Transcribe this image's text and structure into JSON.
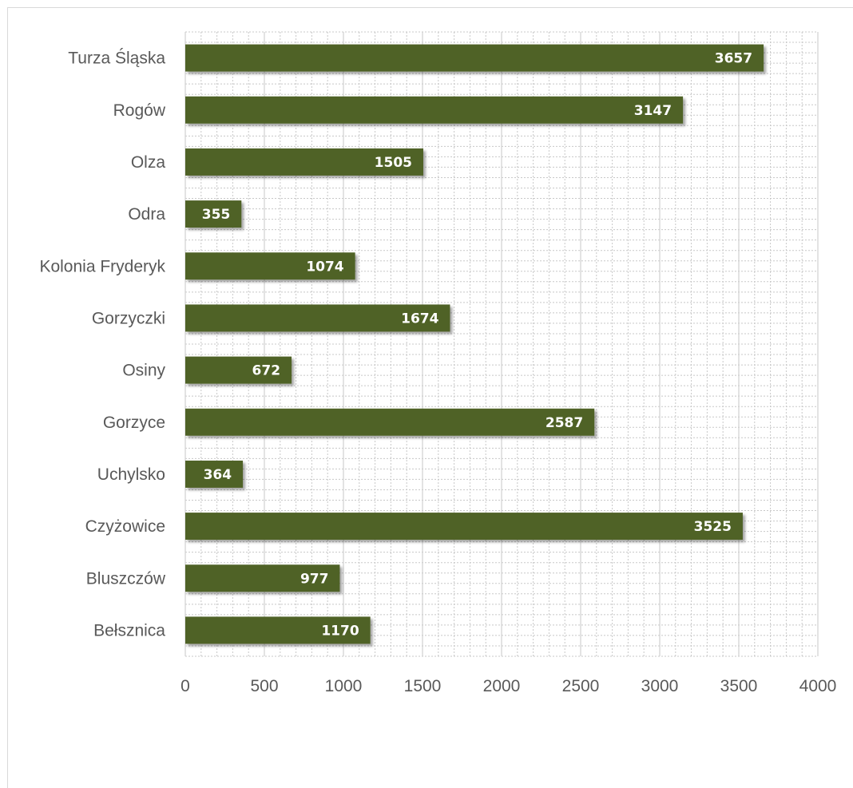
{
  "colors": {
    "bar": "#4f6228",
    "bar_shadow": "#9a9a9a",
    "major_grid": "#d0d0d0",
    "minor_grid": "#c8c8c8",
    "axis_text": "#595959",
    "data_label": "#ffffff"
  },
  "chart_data": {
    "type": "bar",
    "orientation": "horizontal",
    "title": "",
    "xlabel": "",
    "ylabel": "",
    "categories": [
      "Turza Śląska",
      "Rogów",
      "Olza",
      "Odra",
      "Kolonia Fryderyk",
      "Gorzyczki",
      "Osiny",
      "Gorzyce",
      "Uchylsko",
      "Czyżowice",
      "Bluszczów",
      "Bełsznica"
    ],
    "values": [
      3657,
      3147,
      1505,
      355,
      1074,
      1674,
      672,
      2587,
      364,
      3525,
      977,
      1170
    ],
    "xlim": [
      0,
      4000
    ],
    "xticks": [
      0,
      500,
      1000,
      1500,
      2000,
      2500,
      3000,
      3500,
      4000
    ],
    "grid": "major and minor",
    "legend": "none",
    "data_labels": true
  }
}
